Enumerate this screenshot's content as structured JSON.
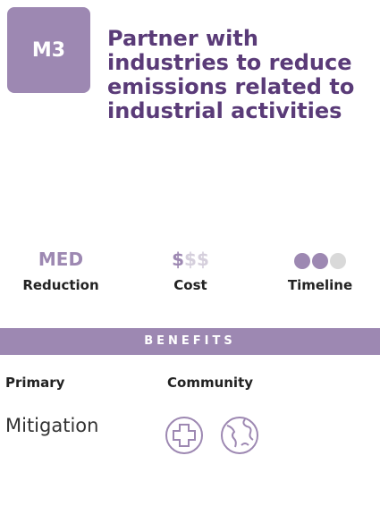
{
  "badge": "M3",
  "title_lines": [
    "Partner with",
    "industries to reduce",
    "emissions related to",
    "industrial activities"
  ],
  "reduction": {
    "value": "MED",
    "label": "Reduction"
  },
  "cost": {
    "symbols": [
      "$",
      "$",
      "$"
    ],
    "level": 1,
    "label": "Cost"
  },
  "timeline": {
    "level": 2,
    "max": 3,
    "label": "Timeline"
  },
  "benefits": {
    "header": "BENEFITS",
    "primary_heading": "Primary",
    "community_heading": "Community",
    "primary": "Mitigation"
  }
}
